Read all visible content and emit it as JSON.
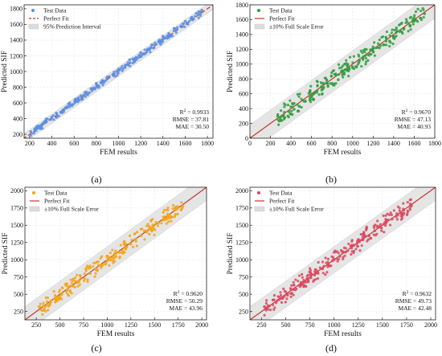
{
  "chart_data": [
    {
      "panel_label": "(a)",
      "type": "scatter",
      "xlabel": "FEM results",
      "ylabel": "Predicted SIF",
      "xlim": [
        150,
        1850
      ],
      "ylim": [
        150,
        1850
      ],
      "xticks": [
        "200",
        "400",
        "600",
        "800",
        "1000",
        "1200",
        "1400",
        "1600",
        "1800"
      ],
      "yticks": [
        "200",
        "400",
        "600",
        "800",
        "1000",
        "1200",
        "1400",
        "1600",
        "1800"
      ],
      "grid": true,
      "legend_position": "top-left",
      "colors": {
        "points": "#5b8fe6",
        "fit": "#c0392b",
        "band": "#dcdcdc"
      },
      "band_width": 60,
      "fit_style": "dashed",
      "seed": 11,
      "legend": [
        "Test Data",
        "Perfect Fit",
        "95% Prediction Interval"
      ],
      "stats": {
        "r2": "0.9933",
        "rmse": "37.81",
        "mae": "30.50"
      },
      "points": [
        [
          210,
          235
        ],
        [
          260,
          290
        ],
        [
          310,
          320
        ],
        [
          350,
          395
        ],
        [
          400,
          420
        ],
        [
          440,
          470
        ],
        [
          500,
          510
        ],
        [
          560,
          600
        ],
        [
          610,
          640
        ],
        [
          660,
          690
        ],
        [
          700,
          735
        ],
        [
          760,
          780
        ],
        [
          800,
          850
        ],
        [
          860,
          880
        ],
        [
          900,
          930
        ],
        [
          960,
          990
        ],
        [
          1000,
          1030
        ],
        [
          1060,
          1080
        ],
        [
          1100,
          1150
        ],
        [
          1160,
          1180
        ],
        [
          1200,
          1240
        ],
        [
          1260,
          1270
        ],
        [
          1300,
          1340
        ],
        [
          1360,
          1380
        ],
        [
          1400,
          1450
        ],
        [
          1460,
          1470
        ],
        [
          1500,
          1550
        ],
        [
          1560,
          1580
        ],
        [
          1600,
          1640
        ],
        [
          1660,
          1690
        ],
        [
          1700,
          1740
        ],
        [
          1750,
          1780
        ]
      ]
    },
    {
      "panel_label": "(b)",
      "type": "scatter",
      "xlabel": "FEM results",
      "ylabel": "Predicted SIF",
      "xlim": [
        0,
        1800
      ],
      "ylim": [
        0,
        1800
      ],
      "xticks": [
        "0",
        "200",
        "400",
        "600",
        "800",
        "1000",
        "1200",
        "1400",
        "1600",
        "1800"
      ],
      "yticks": [
        "0",
        "200",
        "400",
        "600",
        "800",
        "1000",
        "1200",
        "1400",
        "1600",
        "1800"
      ],
      "grid": true,
      "legend_position": "top-left",
      "colors": {
        "points": "#2e9e3e",
        "fit": "#c0392b",
        "band": "#dcdcdc"
      },
      "band_width": 180,
      "fit_style": "solid",
      "seed": 22,
      "legend": [
        "Test Data",
        "Perfect Fit",
        "±10% Full Scale Error"
      ],
      "stats": {
        "r2": "0.9670",
        "rmse": "47.13",
        "mae": "40.93"
      },
      "points": [
        [
          270,
          300
        ],
        [
          320,
          300
        ],
        [
          380,
          360
        ],
        [
          430,
          390
        ],
        [
          480,
          430
        ],
        [
          540,
          500
        ],
        [
          600,
          560
        ],
        [
          650,
          620
        ],
        [
          700,
          650
        ],
        [
          760,
          700
        ],
        [
          800,
          740
        ],
        [
          860,
          790
        ],
        [
          900,
          860
        ],
        [
          960,
          910
        ],
        [
          1000,
          950
        ],
        [
          1060,
          1020
        ],
        [
          1100,
          1080
        ],
        [
          1160,
          1120
        ],
        [
          1200,
          1170
        ],
        [
          1260,
          1220
        ],
        [
          1300,
          1260
        ],
        [
          1360,
          1310
        ],
        [
          1400,
          1370
        ],
        [
          1460,
          1440
        ],
        [
          1500,
          1480
        ],
        [
          1560,
          1520
        ],
        [
          1600,
          1580
        ],
        [
          1660,
          1620
        ],
        [
          1700,
          1680
        ]
      ]
    },
    {
      "panel_label": "(c)",
      "type": "scatter",
      "xlabel": "FEM results",
      "ylabel": "Predicted SIF",
      "xlim": [
        130,
        2050
      ],
      "ylim": [
        130,
        2050
      ],
      "xticks": [
        "250",
        "500",
        "750",
        "1000",
        "1250",
        "1500",
        "1750",
        "2000"
      ],
      "yticks": [
        "250",
        "500",
        "750",
        "1000",
        "1250",
        "1500",
        "1750",
        "2000"
      ],
      "grid": true,
      "legend_position": "top-left",
      "colors": {
        "points": "#f2a51a",
        "fit": "#c0392b",
        "band": "#dcdcdc"
      },
      "band_width": 190,
      "fit_style": "solid",
      "seed": 33,
      "legend": [
        "Test Data",
        "Perfect Fit",
        "±10% Full Scale Error"
      ],
      "stats": {
        "r2": "0.9620",
        "rmse": "50.29",
        "mae": "43.96"
      },
      "points": [
        [
          280,
          320
        ],
        [
          330,
          330
        ],
        [
          400,
          380
        ],
        [
          460,
          440
        ],
        [
          520,
          500
        ],
        [
          580,
          570
        ],
        [
          640,
          620
        ],
        [
          700,
          680
        ],
        [
          760,
          730
        ],
        [
          820,
          800
        ],
        [
          880,
          860
        ],
        [
          940,
          920
        ],
        [
          1000,
          990
        ],
        [
          1060,
          1050
        ],
        [
          1120,
          1110
        ],
        [
          1180,
          1170
        ],
        [
          1240,
          1230
        ],
        [
          1300,
          1300
        ],
        [
          1360,
          1350
        ],
        [
          1420,
          1400
        ],
        [
          1480,
          1470
        ],
        [
          1540,
          1530
        ],
        [
          1600,
          1590
        ],
        [
          1660,
          1650
        ],
        [
          1720,
          1720
        ],
        [
          1800,
          1780
        ]
      ]
    },
    {
      "panel_label": "(d)",
      "type": "scatter",
      "xlabel": "FEM results",
      "ylabel": "Predicted SIF",
      "xlim": [
        130,
        2050
      ],
      "ylim": [
        130,
        2050
      ],
      "xticks": [
        "250",
        "500",
        "750",
        "1000",
        "1250",
        "1500",
        "1750",
        "2000"
      ],
      "yticks": [
        "250",
        "500",
        "750",
        "1000",
        "1250",
        "1500",
        "1750",
        "2000"
      ],
      "grid": true,
      "legend_position": "top-left",
      "colors": {
        "points": "#d9485f",
        "fit": "#c0392b",
        "band": "#dcdcdc"
      },
      "band_width": 190,
      "fit_style": "solid",
      "seed": 44,
      "legend": [
        "Test Data",
        "Perfect Fit",
        "±10% Full Scale Error"
      ],
      "stats": {
        "r2": "0.9632",
        "rmse": "49.73",
        "mae": "42.48"
      },
      "points": [
        [
          280,
          320
        ],
        [
          330,
          330
        ],
        [
          400,
          380
        ],
        [
          460,
          440
        ],
        [
          520,
          510
        ],
        [
          580,
          570
        ],
        [
          640,
          630
        ],
        [
          700,
          690
        ],
        [
          760,
          740
        ],
        [
          820,
          810
        ],
        [
          880,
          870
        ],
        [
          940,
          930
        ],
        [
          1000,
          1000
        ],
        [
          1060,
          1050
        ],
        [
          1120,
          1110
        ],
        [
          1180,
          1170
        ],
        [
          1240,
          1240
        ],
        [
          1300,
          1290
        ],
        [
          1360,
          1350
        ],
        [
          1420,
          1420
        ],
        [
          1480,
          1470
        ],
        [
          1540,
          1540
        ],
        [
          1600,
          1590
        ],
        [
          1660,
          1650
        ],
        [
          1720,
          1720
        ],
        [
          1800,
          1790
        ]
      ]
    }
  ]
}
